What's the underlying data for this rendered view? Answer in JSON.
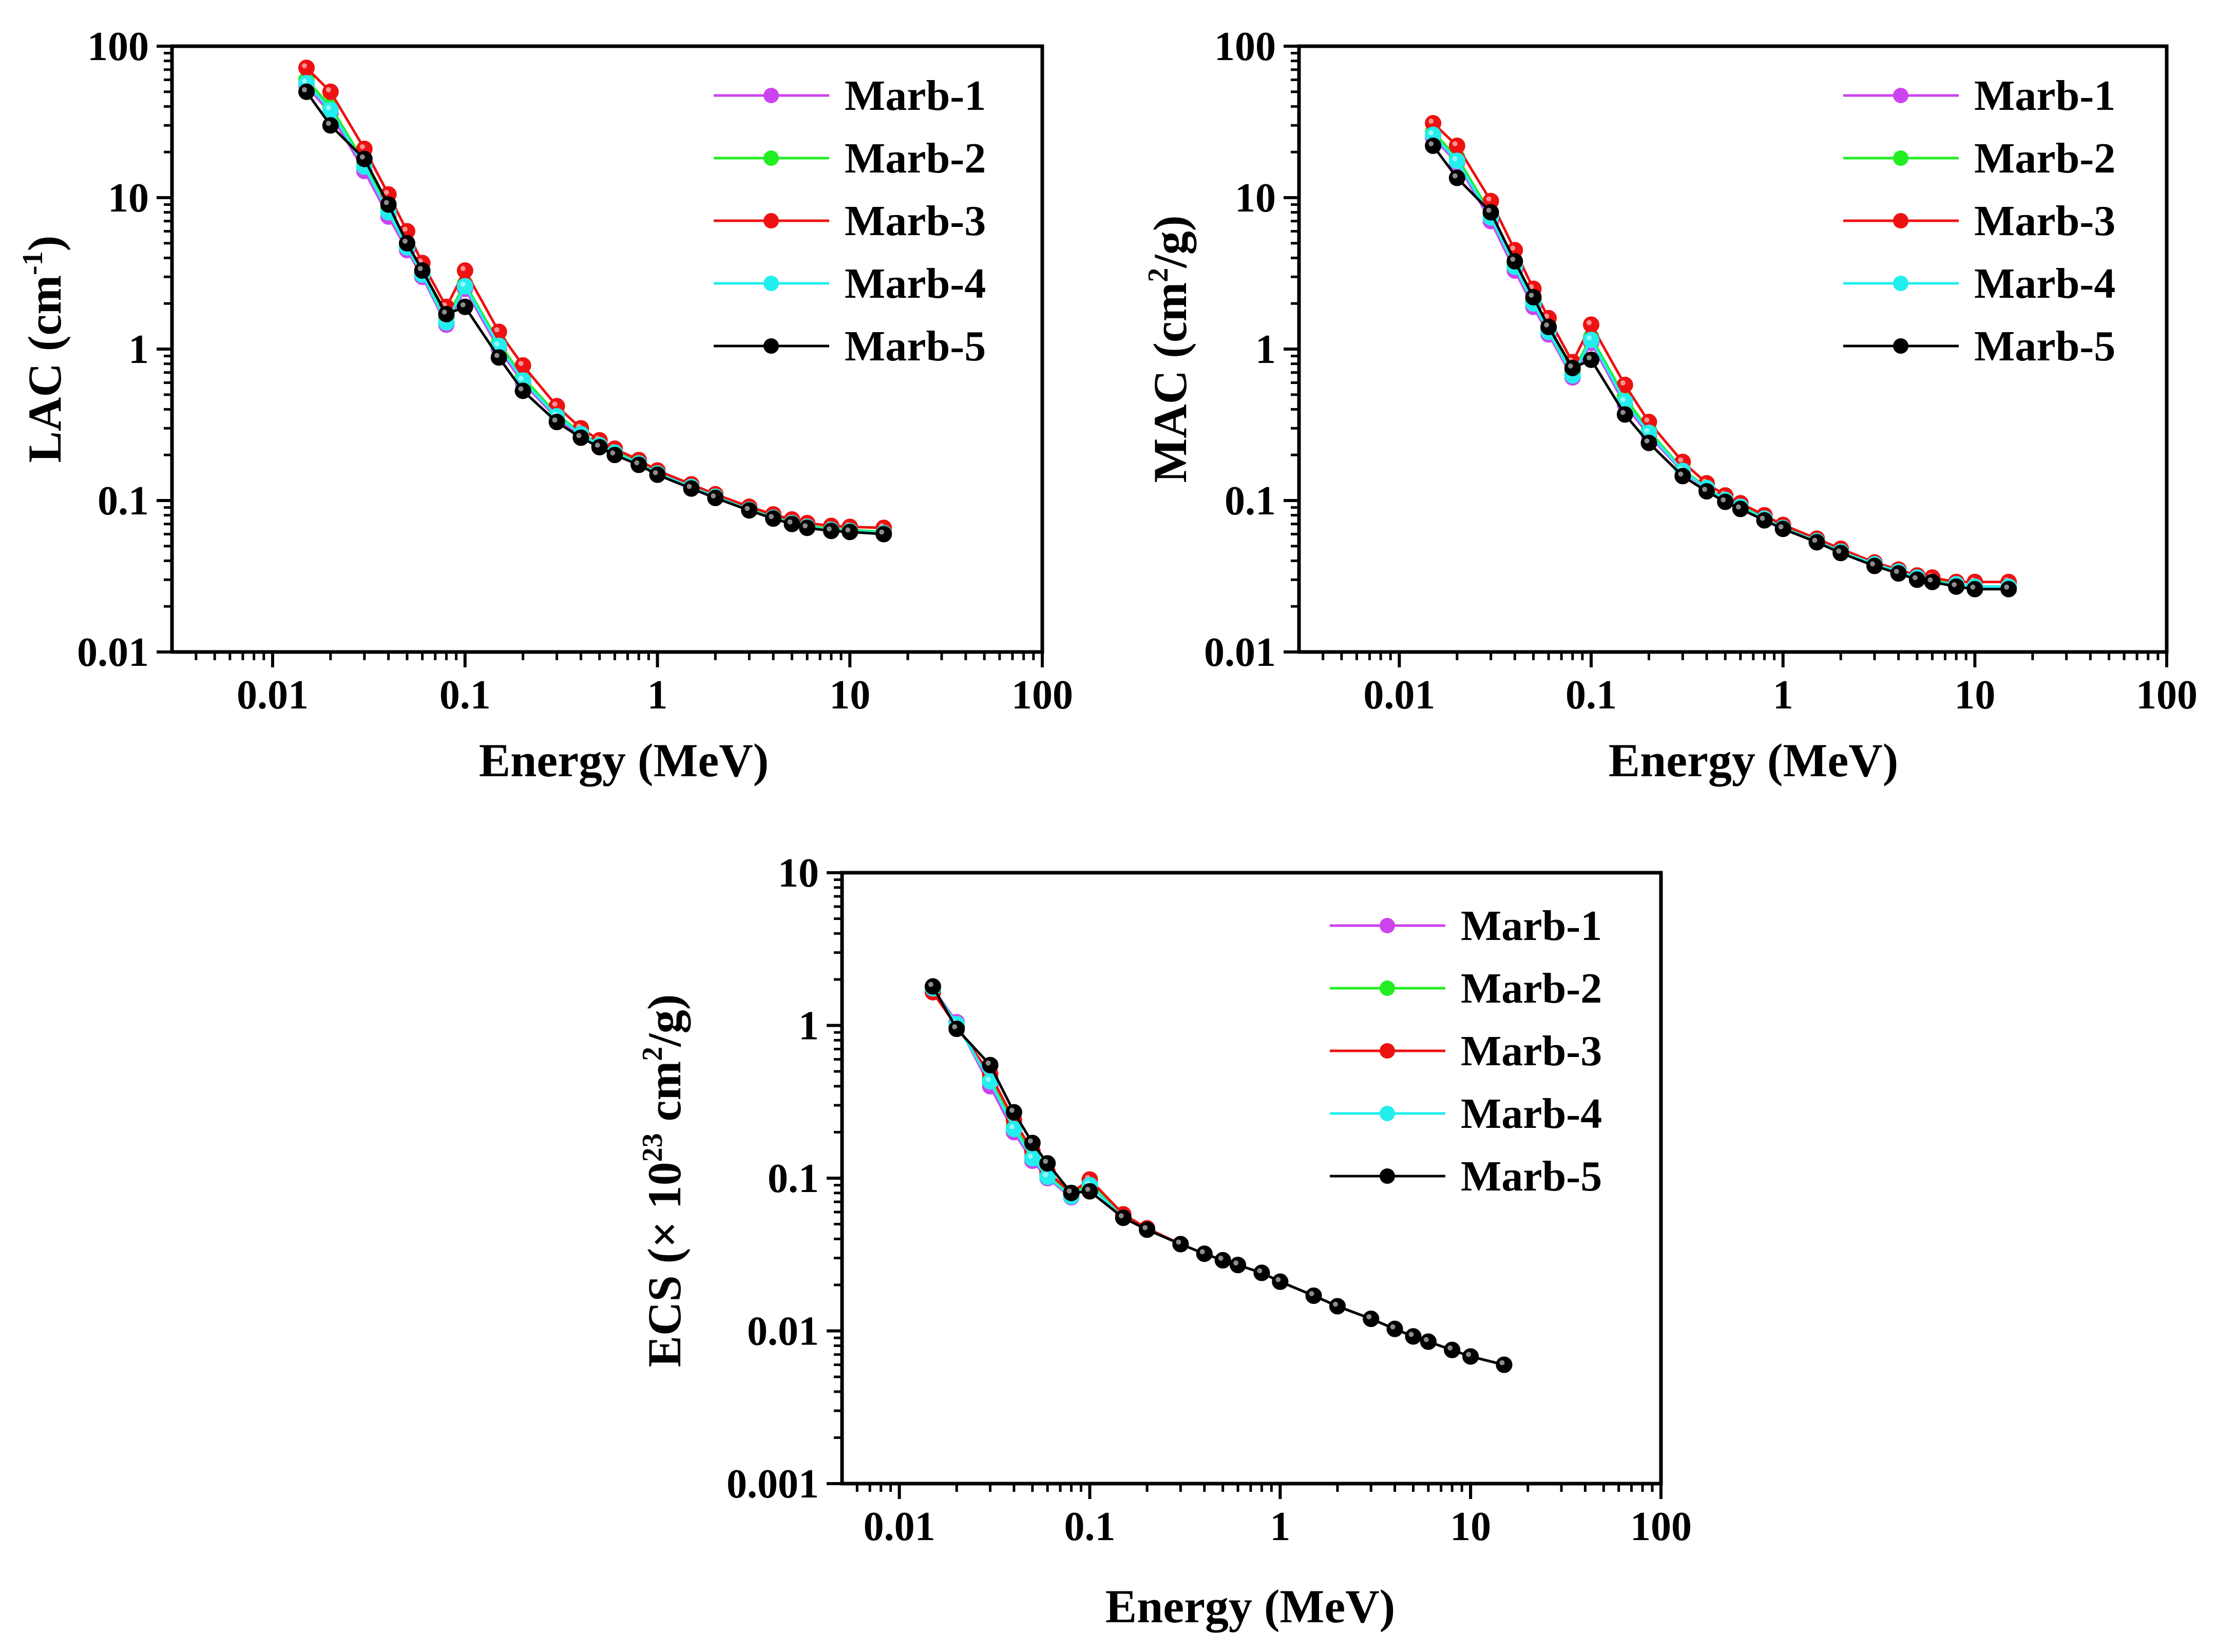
{
  "legend_order": [
    "Marb-1",
    "Marb-2",
    "Marb-3",
    "Marb-4",
    "Marb-5"
  ],
  "colors": {
    "Marb-1": "#cc44ee",
    "Marb-2": "#22ee22",
    "Marb-3": "#ee1111",
    "Marb-4": "#22eeee",
    "Marb-5": "#000000"
  },
  "chart_data": [
    {
      "id": "lac",
      "type": "line",
      "scale": "log-log",
      "xlabel": "Energy (MeV)",
      "ylabel": {
        "main": "LAC (cm",
        "sup": "-1",
        "tail": ")"
      },
      "xlim": [
        0.003,
        100
      ],
      "ylim": [
        0.01,
        100
      ],
      "xticks": [
        {
          "v": 0.01,
          "label": "0.01"
        },
        {
          "v": 0.1,
          "label": "0.1"
        },
        {
          "v": 1,
          "label": "1"
        },
        {
          "v": 10,
          "label": "10"
        },
        {
          "v": 100,
          "label": "100"
        }
      ],
      "yticks": [
        {
          "v": 0.01,
          "label": "0.01"
        },
        {
          "v": 0.1,
          "label": "0.1"
        },
        {
          "v": 1,
          "label": "1"
        },
        {
          "v": 10,
          "label": "10"
        },
        {
          "v": 100,
          "label": "100"
        }
      ],
      "x": [
        0.015,
        0.02,
        0.03,
        0.04,
        0.05,
        0.06,
        0.08,
        0.1,
        0.15,
        0.2,
        0.3,
        0.4,
        0.5,
        0.6,
        0.8,
        1,
        1.5,
        2,
        3,
        4,
        5,
        6,
        8,
        10,
        15
      ],
      "series": [
        {
          "name": "Marb-1",
          "values": [
            55,
            36,
            15,
            7.5,
            4.5,
            3.0,
            1.45,
            2.5,
            1.0,
            0.6,
            0.35,
            0.27,
            0.23,
            0.205,
            0.175,
            0.15,
            0.122,
            0.105,
            0.087,
            0.077,
            0.071,
            0.067,
            0.064,
            0.063,
            0.061
          ]
        },
        {
          "name": "Marb-2",
          "values": [
            60,
            40,
            17,
            8.5,
            5.0,
            3.2,
            1.6,
            2.7,
            1.1,
            0.65,
            0.37,
            0.28,
            0.235,
            0.21,
            0.178,
            0.152,
            0.124,
            0.107,
            0.088,
            0.078,
            0.072,
            0.068,
            0.065,
            0.064,
            0.062
          ]
        },
        {
          "name": "Marb-3",
          "values": [
            72,
            50,
            21,
            10.5,
            6.0,
            3.7,
            1.9,
            3.3,
            1.3,
            0.78,
            0.42,
            0.3,
            0.25,
            0.22,
            0.185,
            0.158,
            0.128,
            0.11,
            0.091,
            0.081,
            0.075,
            0.071,
            0.068,
            0.067,
            0.066
          ]
        },
        {
          "name": "Marb-4",
          "values": [
            57,
            38,
            16,
            8.0,
            4.7,
            3.1,
            1.5,
            2.6,
            1.05,
            0.62,
            0.36,
            0.275,
            0.232,
            0.207,
            0.176,
            0.151,
            0.123,
            0.106,
            0.087,
            0.077,
            0.071,
            0.067,
            0.064,
            0.063,
            0.061
          ]
        },
        {
          "name": "Marb-5",
          "values": [
            50,
            30,
            18,
            9.0,
            5.0,
            3.3,
            1.7,
            1.9,
            0.88,
            0.53,
            0.33,
            0.26,
            0.225,
            0.2,
            0.172,
            0.148,
            0.12,
            0.104,
            0.086,
            0.076,
            0.07,
            0.066,
            0.063,
            0.062,
            0.06
          ]
        }
      ]
    },
    {
      "id": "mac",
      "type": "line",
      "scale": "log-log",
      "xlabel": "Energy (MeV)",
      "ylabel": {
        "main": "MAC (cm",
        "sup": "2",
        "tail": "/g)"
      },
      "xlim": [
        0.003,
        100
      ],
      "ylim": [
        0.01,
        100
      ],
      "xticks": [
        {
          "v": 0.01,
          "label": "0.01"
        },
        {
          "v": 0.1,
          "label": "0.1"
        },
        {
          "v": 1,
          "label": "1"
        },
        {
          "v": 10,
          "label": "10"
        },
        {
          "v": 100,
          "label": "100"
        }
      ],
      "yticks": [
        {
          "v": 0.01,
          "label": "0.01"
        },
        {
          "v": 0.1,
          "label": "0.1"
        },
        {
          "v": 1,
          "label": "1"
        },
        {
          "v": 10,
          "label": "10"
        },
        {
          "v": 100,
          "label": "100"
        }
      ],
      "x": [
        0.015,
        0.02,
        0.03,
        0.04,
        0.05,
        0.06,
        0.08,
        0.1,
        0.15,
        0.2,
        0.3,
        0.4,
        0.5,
        0.6,
        0.8,
        1,
        1.5,
        2,
        3,
        4,
        5,
        6,
        8,
        10,
        15
      ],
      "series": [
        {
          "name": "Marb-1",
          "values": [
            25,
            17,
            7.0,
            3.3,
            1.9,
            1.25,
            0.65,
            1.1,
            0.43,
            0.27,
            0.155,
            0.12,
            0.1,
            0.09,
            0.076,
            0.066,
            0.054,
            0.046,
            0.038,
            0.034,
            0.031,
            0.029,
            0.028,
            0.027,
            0.027
          ]
        },
        {
          "name": "Marb-2",
          "values": [
            27,
            18.5,
            7.8,
            3.7,
            2.1,
            1.35,
            0.7,
            1.2,
            0.48,
            0.29,
            0.16,
            0.122,
            0.102,
            0.092,
            0.077,
            0.067,
            0.054,
            0.047,
            0.038,
            0.034,
            0.031,
            0.03,
            0.028,
            0.027,
            0.027
          ]
        },
        {
          "name": "Marb-3",
          "values": [
            31,
            22,
            9.5,
            4.5,
            2.5,
            1.6,
            0.82,
            1.45,
            0.58,
            0.33,
            0.18,
            0.13,
            0.108,
            0.096,
            0.08,
            0.069,
            0.056,
            0.048,
            0.039,
            0.035,
            0.032,
            0.031,
            0.029,
            0.029,
            0.029
          ]
        },
        {
          "name": "Marb-4",
          "values": [
            26,
            17.5,
            7.4,
            3.5,
            2.0,
            1.3,
            0.67,
            1.15,
            0.45,
            0.28,
            0.157,
            0.121,
            0.101,
            0.091,
            0.076,
            0.066,
            0.054,
            0.046,
            0.038,
            0.034,
            0.031,
            0.029,
            0.028,
            0.027,
            0.027
          ]
        },
        {
          "name": "Marb-5",
          "values": [
            22,
            13.5,
            8.0,
            3.8,
            2.2,
            1.4,
            0.75,
            0.85,
            0.37,
            0.24,
            0.145,
            0.115,
            0.098,
            0.088,
            0.074,
            0.065,
            0.053,
            0.045,
            0.037,
            0.033,
            0.03,
            0.029,
            0.027,
            0.026,
            0.026
          ]
        }
      ]
    },
    {
      "id": "ecs",
      "type": "line",
      "scale": "log-log",
      "xlabel": "Energy (MeV)",
      "ylabel": {
        "main": "ECS (× 10",
        "sup": "23",
        "tail": " cm",
        "sup2": "2",
        "tail2": "/g)"
      },
      "xlim": [
        0.005,
        100
      ],
      "ylim": [
        0.001,
        10
      ],
      "xticks": [
        {
          "v": 0.01,
          "label": "0.01"
        },
        {
          "v": 0.1,
          "label": "0.1"
        },
        {
          "v": 1,
          "label": "1"
        },
        {
          "v": 10,
          "label": "10"
        },
        {
          "v": 100,
          "label": "100"
        }
      ],
      "yticks": [
        {
          "v": 0.001,
          "label": "0.001"
        },
        {
          "v": 0.01,
          "label": "0.01"
        },
        {
          "v": 0.1,
          "label": "0.1"
        },
        {
          "v": 1,
          "label": "1"
        },
        {
          "v": 10,
          "label": "10"
        }
      ],
      "x": [
        0.015,
        0.02,
        0.03,
        0.04,
        0.05,
        0.06,
        0.08,
        0.1,
        0.15,
        0.2,
        0.3,
        0.4,
        0.5,
        0.6,
        0.8,
        1,
        1.5,
        2,
        3,
        4,
        5,
        6,
        8,
        10,
        15
      ],
      "series": [
        {
          "name": "Marb-1",
          "values": [
            1.75,
            1.05,
            0.4,
            0.2,
            0.13,
            0.1,
            0.075,
            0.09,
            0.055,
            0.046,
            0.037,
            0.032,
            0.029,
            0.027,
            0.024,
            0.021,
            0.017,
            0.0145,
            0.012,
            0.0103,
            0.0092,
            0.0085,
            0.0075,
            0.0068,
            0.006
          ]
        },
        {
          "name": "Marb-2",
          "values": [
            1.75,
            1.0,
            0.45,
            0.22,
            0.14,
            0.105,
            0.078,
            0.092,
            0.056,
            0.046,
            0.037,
            0.032,
            0.029,
            0.027,
            0.024,
            0.021,
            0.017,
            0.0145,
            0.012,
            0.0103,
            0.0092,
            0.0085,
            0.0075,
            0.0068,
            0.006
          ]
        },
        {
          "name": "Marb-3",
          "values": [
            1.65,
            0.98,
            0.48,
            0.24,
            0.15,
            0.11,
            0.08,
            0.098,
            0.058,
            0.047,
            0.037,
            0.032,
            0.029,
            0.027,
            0.024,
            0.021,
            0.017,
            0.0145,
            0.012,
            0.0103,
            0.0092,
            0.0085,
            0.0075,
            0.0068,
            0.006
          ]
        },
        {
          "name": "Marb-4",
          "values": [
            1.75,
            1.02,
            0.43,
            0.21,
            0.135,
            0.102,
            0.076,
            0.09,
            0.055,
            0.046,
            0.037,
            0.032,
            0.029,
            0.027,
            0.024,
            0.021,
            0.017,
            0.0145,
            0.012,
            0.0103,
            0.0092,
            0.0085,
            0.0075,
            0.0068,
            0.006
          ]
        },
        {
          "name": "Marb-5",
          "values": [
            1.8,
            0.95,
            0.55,
            0.27,
            0.17,
            0.125,
            0.08,
            0.082,
            0.055,
            0.046,
            0.037,
            0.032,
            0.029,
            0.027,
            0.024,
            0.021,
            0.017,
            0.0145,
            0.012,
            0.0103,
            0.0092,
            0.0085,
            0.0075,
            0.0068,
            0.006
          ]
        }
      ]
    }
  ]
}
